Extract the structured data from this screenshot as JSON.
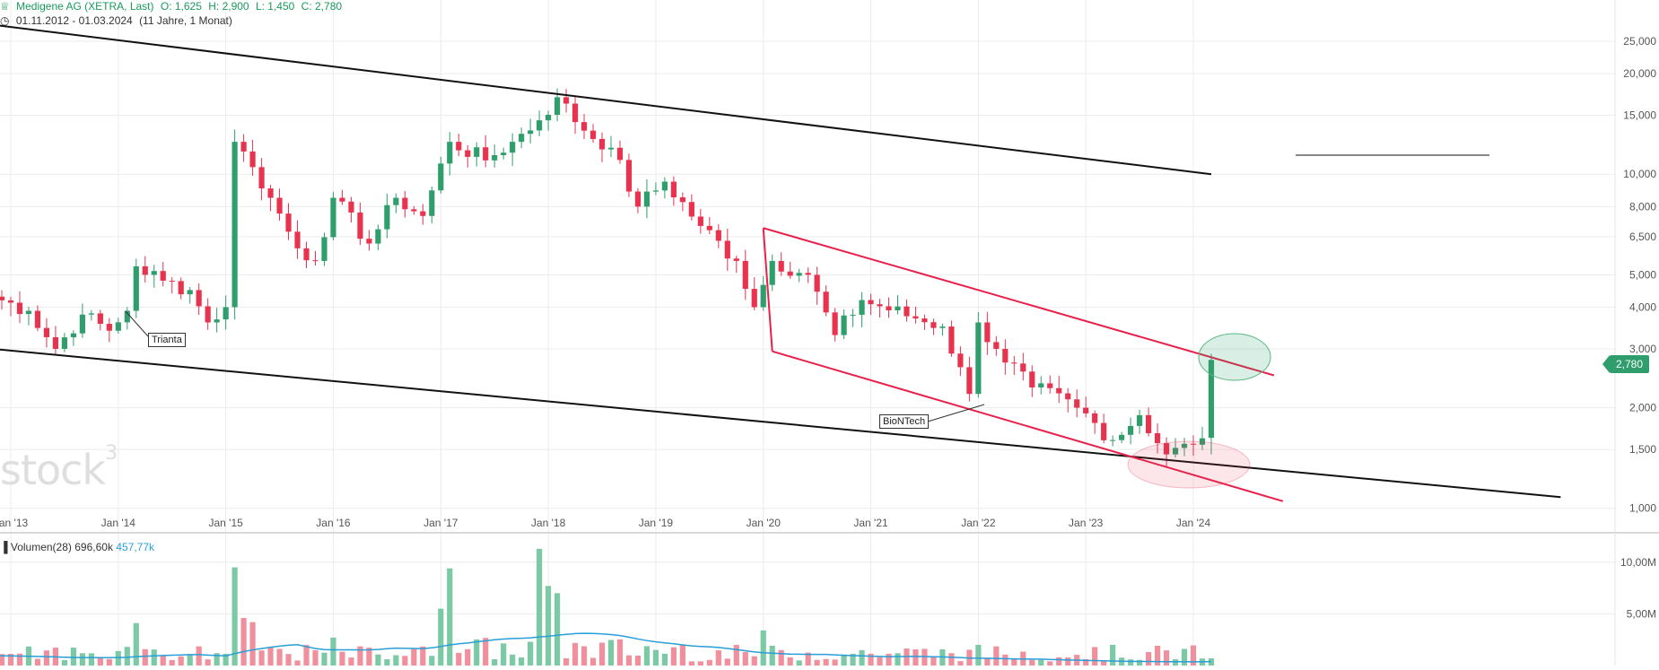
{
  "header": {
    "title": "Medigene AG (XETRA, Last)",
    "open": "O: 1,625",
    "high": "H: 2,900",
    "low": "L: 1,450",
    "close": "C: 2,780",
    "range": "01.11.2012 - 01.03.2024",
    "duration": "(11 Jahre, 1 Monat)"
  },
  "last_price_badge": "2,780",
  "watermark": "stock3",
  "annotations": {
    "trianta": "Trianta",
    "biontech": "BioNTech"
  },
  "volume_legend": {
    "name": "Volumen(28)",
    "value": "696,60k",
    "ma_value": "457,77k"
  },
  "colors": {
    "up": "#2f9e6c",
    "down": "#e8334f",
    "volume_up": "#7cc9a6",
    "volume_down": "#f0909d",
    "volume_ma": "#2a9ed8",
    "channel_long": "#111111",
    "channel_short": "#e8204a",
    "grid": "#ececec"
  },
  "chart_data": {
    "type": "candlestick",
    "y_scale": "log",
    "ylim": [
      0.95,
      29
    ],
    "y_ticks": [
      "1,000",
      "1,500",
      "2,000",
      "3,000",
      "4,000",
      "5,000",
      "6,500",
      "8,000",
      "10,000",
      "15,000",
      "20,000",
      "25,000"
    ],
    "y_tick_values": [
      1.0,
      1.5,
      2.0,
      3.0,
      4.0,
      5.0,
      6.5,
      8.0,
      10.0,
      15.0,
      20.0,
      25.0
    ],
    "x_ticks": [
      "Jan '13",
      "Jan '14",
      "Jan '15",
      "Jan '16",
      "Jan '17",
      "Jan '18",
      "Jan '19",
      "Jan '20",
      "Jan '21",
      "Jan '22",
      "Jan '23",
      "Jan '24"
    ],
    "x_tick_years": [
      2013,
      2014,
      2015,
      2016,
      2017,
      2018,
      2019,
      2020,
      2021,
      2022,
      2023,
      2024
    ],
    "x_range": [
      "2012-11",
      "2024-03"
    ],
    "anchors": [
      [
        "2012-11",
        4.3
      ],
      [
        "2013-03",
        3.9
      ],
      [
        "2013-06",
        3.0
      ],
      [
        "2013-09",
        3.8
      ],
      [
        "2013-12",
        3.4
      ],
      [
        "2014-02",
        3.9
      ],
      [
        "2014-03",
        5.3
      ],
      [
        "2014-06",
        4.8
      ],
      [
        "2014-09",
        4.5
      ],
      [
        "2014-11",
        3.6
      ],
      [
        "2015-01",
        4.0
      ],
      [
        "2015-02",
        12.5
      ],
      [
        "2015-04",
        10.5
      ],
      [
        "2015-06",
        8.5
      ],
      [
        "2015-09",
        6.0
      ],
      [
        "2015-11",
        5.5
      ],
      [
        "2016-01",
        8.5
      ],
      [
        "2016-05",
        6.2
      ],
      [
        "2016-08",
        8.5
      ],
      [
        "2016-11",
        7.5
      ],
      [
        "2017-02",
        12.5
      ],
      [
        "2017-06",
        11.0
      ],
      [
        "2017-09",
        12.5
      ],
      [
        "2017-12",
        14.5
      ],
      [
        "2018-02",
        17.0
      ],
      [
        "2018-05",
        13.5
      ],
      [
        "2018-08",
        12.0
      ],
      [
        "2018-11",
        8.0
      ],
      [
        "2019-02",
        9.5
      ],
      [
        "2019-06",
        7.0
      ],
      [
        "2019-10",
        5.5
      ],
      [
        "2019-12",
        4.0
      ],
      [
        "2020-02",
        5.5
      ],
      [
        "2020-06",
        5.0
      ],
      [
        "2020-09",
        3.3
      ],
      [
        "2020-12",
        4.2
      ],
      [
        "2021-06",
        3.7
      ],
      [
        "2021-09",
        3.5
      ],
      [
        "2021-12",
        2.2
      ],
      [
        "2022-01",
        3.6
      ],
      [
        "2022-03",
        3.0
      ],
      [
        "2022-07",
        2.3
      ],
      [
        "2022-12",
        2.0
      ],
      [
        "2023-04",
        1.6
      ],
      [
        "2023-07",
        1.9
      ],
      [
        "2023-10",
        1.45
      ],
      [
        "2024-01",
        1.55
      ],
      [
        "2024-02",
        1.62
      ],
      [
        "2024-03",
        2.78
      ]
    ],
    "last_candle": {
      "date": "2024-03",
      "open": 1.625,
      "high": 2.9,
      "low": 1.45,
      "close": 2.78
    },
    "trendlines": [
      {
        "name": "long-term upper",
        "color": "#111111",
        "points": [
          [
            "2012-11",
            28.0
          ],
          [
            "2024-03",
            10.0
          ]
        ]
      },
      {
        "name": "long-term lower",
        "color": "#111111",
        "points": [
          [
            "2012-11",
            3.0
          ],
          [
            "2027-06",
            1.08
          ]
        ]
      },
      {
        "name": "short-term upper",
        "color": "#e8204a",
        "points": [
          [
            "2020-01",
            6.9
          ],
          [
            "2024-10",
            2.5
          ]
        ]
      },
      {
        "name": "short-term lower",
        "color": "#e8204a",
        "points": [
          [
            "2020-02",
            2.95
          ],
          [
            "2024-11",
            1.05
          ]
        ]
      }
    ],
    "volume": {
      "y_ticks": [
        "5,00M",
        "10,00M"
      ],
      "y_tick_values": [
        5.0,
        10.0
      ],
      "unit": "M",
      "spikes": [
        [
          "2014-02",
          1.8
        ],
        [
          "2014-03",
          4.1
        ],
        [
          "2015-02",
          9.5
        ],
        [
          "2015-03",
          4.6
        ],
        [
          "2017-02",
          9.4
        ],
        [
          "2017-12",
          11.3
        ],
        [
          "2018-02",
          7.0
        ],
        [
          "2018-01",
          7.7
        ],
        [
          "2017-01",
          5.5
        ],
        [
          "2015-04",
          4.2
        ],
        [
          "2020-01",
          3.4
        ],
        [
          "2022-01",
          2.0
        ]
      ],
      "last": 0.7
    }
  }
}
